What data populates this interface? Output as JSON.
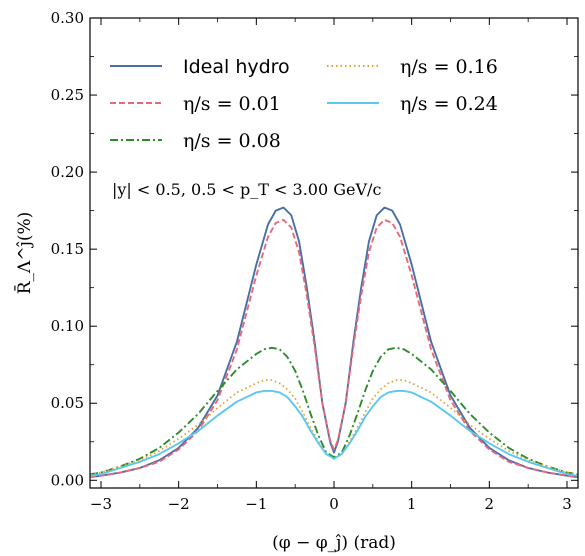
{
  "chart_data": {
    "type": "line",
    "xlabel": "(φ − φ_ĵ) (rad)",
    "ylabel": "R̄_Λ^ĵ(%)",
    "xlim": [
      -3.1416,
      3.1416
    ],
    "ylim": [
      -0.005,
      0.3
    ],
    "xticks": [
      -3,
      -2,
      -1,
      0,
      1,
      2,
      3
    ],
    "xtick_labels": [
      "−3",
      "−2",
      "−1",
      "0",
      "1",
      "2",
      "3"
    ],
    "yticks": [
      0.0,
      0.05,
      0.1,
      0.15,
      0.2,
      0.25,
      0.3
    ],
    "ytick_labels": [
      "0.00",
      "0.05",
      "0.10",
      "0.15",
      "0.20",
      "0.25",
      "0.30"
    ],
    "grid": false,
    "legend_placement": "top-left, two columns",
    "annotation": "|y| < 0.5, 0.5 < p_T < 3.00 GeV/c",
    "series": [
      {
        "name": "Ideal hydro",
        "color": "#4a6fa5",
        "style": "solid",
        "x": [
          -3.14,
          -3.0,
          -2.75,
          -2.5,
          -2.25,
          -2.0,
          -1.75,
          -1.5,
          -1.25,
          -1.0,
          -0.85,
          -0.75,
          -0.65,
          -0.55,
          -0.45,
          -0.35,
          -0.25,
          -0.15,
          -0.05,
          0.0,
          0.05,
          0.15,
          0.25,
          0.35,
          0.45,
          0.55,
          0.65,
          0.75,
          0.85,
          1.0,
          1.25,
          1.5,
          1.75,
          2.0,
          2.25,
          2.5,
          2.75,
          3.0,
          3.14
        ],
        "y": [
          0.002,
          0.003,
          0.005,
          0.008,
          0.013,
          0.021,
          0.034,
          0.055,
          0.09,
          0.14,
          0.166,
          0.175,
          0.177,
          0.172,
          0.155,
          0.125,
          0.09,
          0.05,
          0.025,
          0.018,
          0.025,
          0.05,
          0.09,
          0.125,
          0.155,
          0.172,
          0.177,
          0.175,
          0.166,
          0.14,
          0.09,
          0.055,
          0.034,
          0.021,
          0.013,
          0.008,
          0.005,
          0.003,
          0.002
        ]
      },
      {
        "name": "η/s = 0.01",
        "color": "#e8687a",
        "style": "dashed",
        "x": [
          -3.14,
          -3.0,
          -2.75,
          -2.5,
          -2.25,
          -2.0,
          -1.75,
          -1.5,
          -1.25,
          -1.0,
          -0.85,
          -0.75,
          -0.65,
          -0.55,
          -0.45,
          -0.35,
          -0.25,
          -0.15,
          -0.05,
          0.0,
          0.05,
          0.15,
          0.25,
          0.35,
          0.45,
          0.55,
          0.65,
          0.75,
          0.85,
          1.0,
          1.25,
          1.5,
          1.75,
          2.0,
          2.25,
          2.5,
          2.75,
          3.0,
          3.14
        ],
        "y": [
          0.002,
          0.003,
          0.005,
          0.008,
          0.012,
          0.02,
          0.032,
          0.052,
          0.085,
          0.133,
          0.158,
          0.167,
          0.169,
          0.164,
          0.148,
          0.12,
          0.087,
          0.05,
          0.026,
          0.02,
          0.026,
          0.05,
          0.087,
          0.12,
          0.148,
          0.164,
          0.169,
          0.167,
          0.158,
          0.133,
          0.085,
          0.052,
          0.032,
          0.02,
          0.012,
          0.008,
          0.005,
          0.003,
          0.002
        ]
      },
      {
        "name": "η/s = 0.08",
        "color": "#2e8b2e",
        "style": "dashdot",
        "x": [
          -3.14,
          -3.0,
          -2.75,
          -2.5,
          -2.25,
          -2.0,
          -1.75,
          -1.5,
          -1.25,
          -1.0,
          -0.9,
          -0.8,
          -0.7,
          -0.6,
          -0.5,
          -0.4,
          -0.3,
          -0.2,
          -0.1,
          0.0,
          0.1,
          0.2,
          0.3,
          0.4,
          0.5,
          0.6,
          0.7,
          0.8,
          0.9,
          1.0,
          1.25,
          1.5,
          1.75,
          2.0,
          2.25,
          2.5,
          2.75,
          3.0,
          3.14
        ],
        "y": [
          0.004,
          0.005,
          0.009,
          0.014,
          0.021,
          0.031,
          0.043,
          0.058,
          0.072,
          0.082,
          0.085,
          0.086,
          0.085,
          0.08,
          0.071,
          0.058,
          0.043,
          0.029,
          0.018,
          0.015,
          0.018,
          0.029,
          0.043,
          0.058,
          0.071,
          0.08,
          0.085,
          0.086,
          0.085,
          0.082,
          0.072,
          0.058,
          0.043,
          0.031,
          0.021,
          0.014,
          0.009,
          0.005,
          0.004
        ]
      },
      {
        "name": "η/s = 0.16",
        "color": "#e0a030",
        "style": "dotted",
        "x": [
          -3.14,
          -3.0,
          -2.75,
          -2.5,
          -2.25,
          -2.0,
          -1.75,
          -1.5,
          -1.25,
          -1.0,
          -0.9,
          -0.8,
          -0.7,
          -0.6,
          -0.5,
          -0.4,
          -0.3,
          -0.2,
          -0.1,
          0.0,
          0.1,
          0.2,
          0.3,
          0.4,
          0.5,
          0.6,
          0.7,
          0.8,
          0.9,
          1.0,
          1.25,
          1.5,
          1.75,
          2.0,
          2.25,
          2.5,
          2.75,
          3.0,
          3.14
        ],
        "y": [
          0.004,
          0.005,
          0.009,
          0.013,
          0.019,
          0.027,
          0.036,
          0.047,
          0.057,
          0.063,
          0.065,
          0.065,
          0.063,
          0.059,
          0.053,
          0.044,
          0.034,
          0.025,
          0.017,
          0.014,
          0.017,
          0.025,
          0.034,
          0.044,
          0.053,
          0.059,
          0.063,
          0.065,
          0.065,
          0.063,
          0.057,
          0.047,
          0.036,
          0.027,
          0.019,
          0.013,
          0.009,
          0.005,
          0.004
        ]
      },
      {
        "name": "η/s = 0.24",
        "color": "#5bc8ee",
        "style": "solid",
        "x": [
          -3.14,
          -3.0,
          -2.75,
          -2.5,
          -2.25,
          -2.0,
          -1.75,
          -1.5,
          -1.25,
          -1.0,
          -0.9,
          -0.8,
          -0.7,
          -0.6,
          -0.5,
          -0.4,
          -0.3,
          -0.2,
          -0.1,
          0.0,
          0.1,
          0.2,
          0.3,
          0.4,
          0.5,
          0.6,
          0.7,
          0.8,
          0.9,
          1.0,
          1.25,
          1.5,
          1.75,
          2.0,
          2.25,
          2.5,
          2.75,
          3.0,
          3.14
        ],
        "y": [
          0.003,
          0.004,
          0.008,
          0.012,
          0.017,
          0.024,
          0.032,
          0.042,
          0.051,
          0.057,
          0.058,
          0.058,
          0.057,
          0.054,
          0.048,
          0.041,
          0.032,
          0.024,
          0.017,
          0.014,
          0.017,
          0.024,
          0.032,
          0.041,
          0.048,
          0.054,
          0.057,
          0.058,
          0.058,
          0.057,
          0.051,
          0.042,
          0.032,
          0.024,
          0.017,
          0.012,
          0.008,
          0.004,
          0.003
        ]
      }
    ]
  }
}
